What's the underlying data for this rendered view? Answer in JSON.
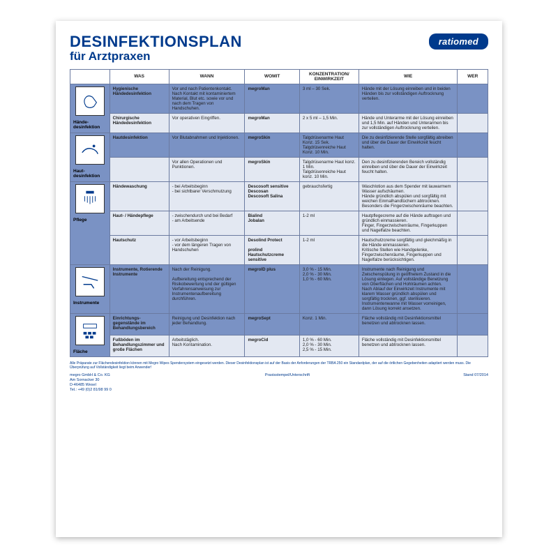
{
  "colors": {
    "brand": "#003a8c",
    "cell_blue": "#7a92c4",
    "cell_lblue": "#e3e8f2",
    "border": "#6a7aa0"
  },
  "title1": "DESINFEKTIONSPLAN",
  "title2": "für Arztpraxen",
  "logo": "ratiomed",
  "columns": [
    "WAS",
    "WANN",
    "WOMIT",
    "KONZENTRATION/ EINWIRKZEIT",
    "WIE",
    "WER"
  ],
  "sections": [
    {
      "label": "Hände-\ndesinfektion",
      "icon": "hands-icon",
      "rows": [
        {
          "was": "Hygienische Händedesinfektion",
          "wann": "Vor und nach Patientenkontakt. Nach Kontakt mit kontaminiertem Material, Blut etc. sowie vor und nach dem Tragen von Handschuhen.",
          "womit": "megroMan",
          "konz": "3 ml – 30 Sek.",
          "wie": "Hände mit der Lösung einreiben und in beiden Händen bis zur vollständigen Auftrocknung verteilen.",
          "top_blue": true
        },
        {
          "was": "Chirurgische Händedesinfektion",
          "wann": "Vor operativen Eingriffen.",
          "womit": "megroMan",
          "konz": "2 x 5 ml – 1,5 Min.",
          "wie": "Hände und Unterarme mit der Lösung einreiben und 1,5 Min. auf Händen und Unterarmen bis zur vollständigen Auftrocknung verteilen."
        }
      ]
    },
    {
      "label": "Haut-\ndesinfektion",
      "icon": "skin-icon",
      "rows": [
        {
          "was": "Hautdesinfektion",
          "wann": "Vor Blutabnahmen und Injektionen.",
          "womit": "megroSkin",
          "konz": "Talgdrüsenarme Haut Konz. 15 Sek.\nTalgdrüsenreiche Haut Konz. 10 Min.",
          "wie": "Die zu desinfizierende Stelle sorgfältig abreiben und über die Dauer der Einwirkzeit feucht halten.",
          "top_blue": true
        },
        {
          "was": "",
          "wann": "Vor allen Operationen und Punktionen.",
          "womit": "megroSkin",
          "konz": "Talgdrüsenarme Haut konz. 1 Min.\nTalgdrüsenreiche Haut konz. 10 Min.",
          "wie": "Den zu desinfizierenden Bereich vollständig einreiben und über die Dauer der Einwirkzeit feucht halten."
        }
      ]
    },
    {
      "label": "Pflege",
      "icon": "wash-icon",
      "rows": [
        {
          "was": "Händewaschung",
          "wann": "- bei Arbeitsbeginn\n- bei sichtbarer Verschmutzung",
          "womit": "Descosoft sensitive\nDescosan\nDescosoft Salina",
          "konz": "gebrauchsfertig",
          "wie": "Waschlotion aus dem Spender mit lauwarmem Wasser aufschäumen.\nHände gründlich abspülen und sorgfältig mit weichen Einmalhandtüchern abtrocknen.\nBesonders die Fingerzwischenräume beachten."
        },
        {
          "was": "Haut- / Händepflege",
          "wann": "- zwischendurch und bei Bedarf\n- am Arbeitsende",
          "womit": "Bialind\nJobalan",
          "konz": "1-2 ml",
          "wie": "Hautpflegecreme auf die Hände auftragen und gründlich einmassieren.\nFinger, Fingerzwischenräume, Fingerkuppen und Nagelfalze beachten."
        },
        {
          "was": "Hautschutz",
          "wann": "- vor Arbeitsbeginn\n- vor dem längeren Tragen von Handschuhen",
          "womit": "Desolind Protect\n\nprolind Hautschutzcreme sensitive",
          "konz": "1-2 ml",
          "wie": "Hautschutzcreme sorgfältig und gleichmäßig in die Hände einmassieren.\nKritische Stellen wie Handgelenke, Fingerzwischenräume, Fingerkuppen und Nagelfalze berücksichtigen."
        }
      ]
    },
    {
      "label": "Instrumente",
      "icon": "tools-icon",
      "rows": [
        {
          "was": "Instrumente, Rotierende Instrumente",
          "wann": "Nach der Reinigung.\n\nAufbereitung entsprechend der Risikobewertung und der gültigen Verfahrensanweisung zur Instrumentenaufbereitung durchführen.",
          "womit": "megroID plus",
          "konz": "3,0 % - 15 Min.\n2,0 % - 30 Min.\n1,0 % - 60 Min.",
          "wie": "Instrumente nach Reinigung und Zwischenspülung in geöffnetem Zustand in die Lösung einlegen. Auf vollständige Benetzung von Oberflächen und Hohlräumen achten.\nNach Ablauf der Einwirkzeit Instrumente mit klarem Wasser gründlich abspülen und sorgfältig trocknen, ggf. sterilisieren.\nInstrumentenwanne mit Wasser vorreinigen, dann Lösung korrekt ansetzen.",
          "top_blue": true
        }
      ]
    },
    {
      "label": "Fläche",
      "icon": "floor-icon",
      "rows": [
        {
          "was": "Einrichtungs-gegenstände im Behandlungsbereich",
          "wann": "Reinigung und Desinfektion nach jeder Behandlung.",
          "womit": "megroSept",
          "konz": "Konz. 1 Min.",
          "wie": "Fläche vollständig mit Desinfektionsmittel benetzen und abtrocknen lassen.",
          "top_blue": true
        },
        {
          "was": "Fußböden im Behandlungszimmer und große Flächen",
          "wann": "Arbeitstäglich.\nNach Kontamination.",
          "womit": "megroCid",
          "konz": "1,0 % - 60 Min.\n2,0 % - 30 Min.\n2,5 % - 15 Min.",
          "wie": "Fläche vollständig mit Desinfektionsmittel benetzen und abtrocknen lassen."
        }
      ]
    }
  ],
  "footer": {
    "disclaimer": "Alle Präparate zur Flächendesinfektion können mit Megro Wipes Spendersystem eingesetzt werden. Dieser Desinfektionsplan ist auf der Basis der Anforderungen der TRBA 250 ein Standardplan, der auf die örtlichen Gegebenheiten adaptiert werden muss. Die Überprüfung auf Vollständigkeit liegt beim Anwender!",
    "company": "megro GmbH & Co. KG",
    "street": "Am Sornacker 30",
    "city": "D-46485 Wesel",
    "tel": "Tel.: +49 (0)2 81/98 99 0",
    "stamp": "Praxisstempel/Unterschrift",
    "date": "Stand 07/2014"
  }
}
